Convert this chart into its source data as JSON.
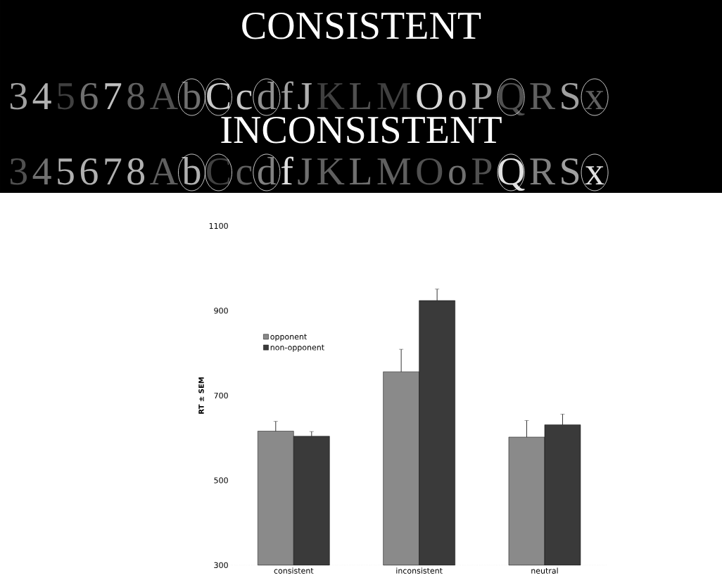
{
  "chart_data": {
    "type": "bar",
    "ylabel": "RT ± SEM",
    "ylim": [
      300,
      1100
    ],
    "yticks": [
      300,
      500,
      700,
      900,
      1100
    ],
    "legend": "top left",
    "categories": [
      "consistent",
      "inconsistent",
      "neutral"
    ],
    "series": [
      {
        "name": "opponent",
        "color": "#8a8a8a",
        "values": [
          616,
          756,
          602
        ],
        "errors": [
          23,
          53,
          39
        ]
      },
      {
        "name": "non-opponent",
        "color": "#3a3a3a",
        "values": [
          604,
          924,
          631
        ],
        "errors": [
          11,
          27,
          25
        ]
      }
    ],
    "annotations": [
      "CONSISTENT",
      "3",
      "4",
      "5",
      "6",
      "7",
      "8",
      "A",
      "b",
      "C",
      "c",
      "d",
      "f",
      "J",
      "K",
      "L",
      "M",
      "O",
      "o",
      "P",
      "Q",
      "R",
      "S",
      "x",
      "INCONSISTENT",
      "3",
      "4",
      "5",
      "6",
      "7",
      "8",
      "A",
      "b",
      "C",
      "c",
      "d",
      "f",
      "J",
      "K",
      "L",
      "M",
      "O",
      "o",
      "P",
      "Q",
      "R",
      "S",
      "x"
    ]
  }
}
